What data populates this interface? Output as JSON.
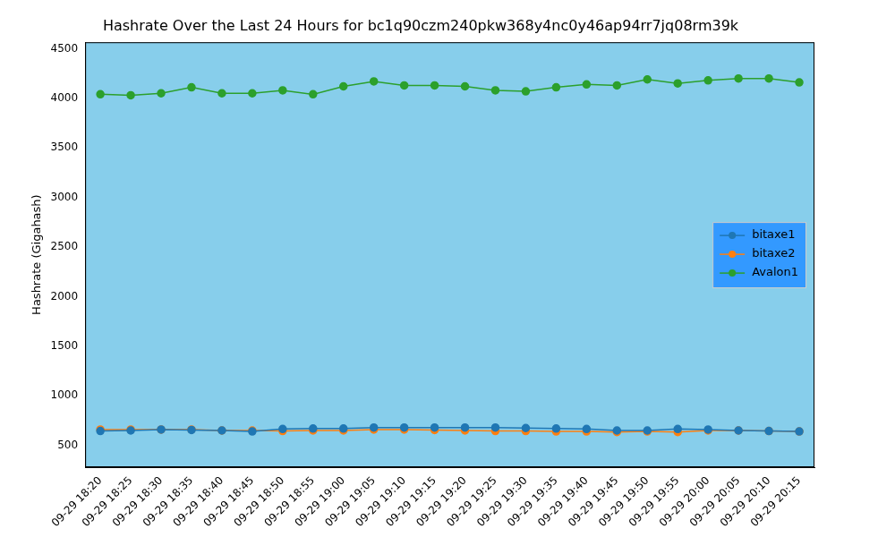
{
  "chart_data": {
    "type": "line",
    "title": "Hashrate Over the Last 24 Hours for bc1q90czm240pkw368y4nc0y46ap94rr7jq08rm39k",
    "y_label": "Hashrate (Gigahash)",
    "categories": [
      "09-29 18:20",
      "09-29 18:25",
      "09-29 18:30",
      "09-29 18:35",
      "09-29 18:40",
      "09-29 18:45",
      "09-29 18:50",
      "09-29 18:55",
      "09-29 19:00",
      "09-29 19:05",
      "09-29 19:10",
      "09-29 19:15",
      "09-29 19:20",
      "09-29 19:25",
      "09-29 19:30",
      "09-29 19:35",
      "09-29 19:40",
      "09-29 19:45",
      "09-29 19:50",
      "09-29 19:55",
      "09-29 20:00",
      "09-29 20:05",
      "09-29 20:10",
      "09-29 20:15"
    ],
    "series": [
      {
        "name": "bitaxe1",
        "color": "#1f77b4",
        "marker": "circle",
        "line_style": "solid",
        "values": [
          645,
          650,
          660,
          655,
          650,
          640,
          665,
          670,
          670,
          680,
          680,
          680,
          680,
          680,
          675,
          670,
          665,
          650,
          650,
          665,
          660,
          650,
          645,
          640
        ]
      },
      {
        "name": "bitaxe2",
        "color": "#ff7f0e",
        "marker": "circle",
        "line_style": "solid",
        "values": [
          660,
          660,
          660,
          660,
          650,
          650,
          645,
          650,
          650,
          660,
          660,
          655,
          650,
          645,
          645,
          640,
          640,
          635,
          640,
          635,
          650,
          650,
          645,
          640
        ]
      },
      {
        "name": "Avalon1",
        "color": "#2ca02c",
        "marker": "circle",
        "line_style": "solid",
        "values": [
          4040,
          4030,
          4050,
          4110,
          4050,
          4050,
          4080,
          4040,
          4120,
          4170,
          4130,
          4130,
          4120,
          4080,
          4070,
          4110,
          4140,
          4130,
          4190,
          4150,
          4180,
          4200,
          4200,
          4160
        ]
      }
    ],
    "ylim": [
      280,
      4565
    ],
    "yticks": [
      500,
      1000,
      1500,
      2000,
      2500,
      3000,
      3500,
      4000,
      4500
    ],
    "grid": false,
    "legend": "center right"
  }
}
